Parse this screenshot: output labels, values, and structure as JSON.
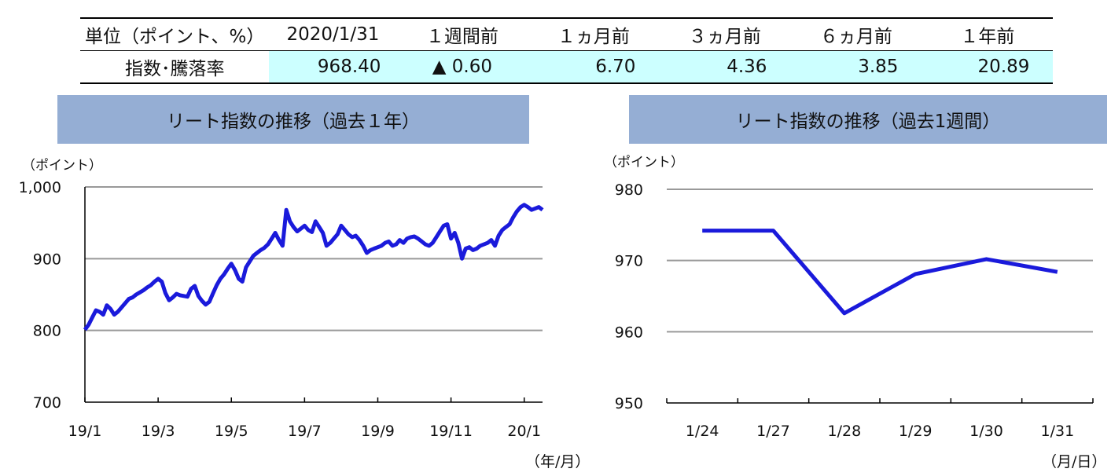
{
  "summary": {
    "unit_label": "単位（ポイント、%）",
    "row_label": "指数･騰落率",
    "columns": [
      {
        "header": "2020/1/31",
        "value": "968.40"
      },
      {
        "header": "１週間前",
        "value": "▲ 0.60"
      },
      {
        "header": "１ヵ月前",
        "value": "6.70"
      },
      {
        "header": "３ヵ月前",
        "value": "4.36"
      },
      {
        "header": "６ヵ月前",
        "value": "3.85"
      },
      {
        "header": "１年前",
        "value": "20.89"
      }
    ]
  },
  "colors": {
    "line": "#1a1adb",
    "header_bg": "#95aed4",
    "value_bg": "#ccffff",
    "grid": "#999999"
  },
  "chart_data": [
    {
      "type": "line",
      "title": "リート指数の推移（過去１年）",
      "ylabel": "（ポイント）",
      "xlabel": "（年/月）",
      "ylim": [
        700,
        1000
      ],
      "yticks": [
        700,
        800,
        900,
        1000
      ],
      "ytick_labels": [
        "700",
        "800",
        "900",
        "1,000"
      ],
      "xlim": [
        0,
        12.5
      ],
      "xticks": [
        0,
        2,
        4,
        6,
        8,
        10,
        12
      ],
      "xtick_labels": [
        "19/1",
        "19/3",
        "19/5",
        "19/7",
        "19/9",
        "19/11",
        "20/1"
      ],
      "grid": true,
      "series": [
        {
          "x": [
            0,
            0.1,
            0.2,
            0.3,
            0.4,
            0.5,
            0.6,
            0.7,
            0.8,
            0.9,
            1.0,
            1.1,
            1.2,
            1.3,
            1.4,
            1.5,
            1.6,
            1.7,
            1.8,
            1.9,
            2.0,
            2.1,
            2.2,
            2.3,
            2.4,
            2.5,
            2.6,
            2.7,
            2.8,
            2.9,
            3.0,
            3.1,
            3.2,
            3.3,
            3.4,
            3.5,
            3.6,
            3.7,
            3.8,
            3.9,
            4.0,
            4.1,
            4.2,
            4.3,
            4.4,
            4.5,
            4.6,
            4.7,
            4.8,
            4.9,
            5.0,
            5.1,
            5.2,
            5.3,
            5.4,
            5.5,
            5.6,
            5.7,
            5.8,
            5.9,
            6.0,
            6.1,
            6.2,
            6.3,
            6.4,
            6.5,
            6.6,
            6.7,
            6.8,
            6.9,
            7.0,
            7.1,
            7.2,
            7.3,
            7.4,
            7.5,
            7.6,
            7.7,
            7.8,
            7.9,
            8.0,
            8.1,
            8.2,
            8.3,
            8.4,
            8.5,
            8.6,
            8.7,
            8.8,
            8.9,
            9.0,
            9.1,
            9.2,
            9.3,
            9.4,
            9.5,
            9.6,
            9.7,
            9.8,
            9.9,
            10.0,
            10.1,
            10.2,
            10.3,
            10.4,
            10.5,
            10.6,
            10.7,
            10.8,
            10.9,
            11.0,
            11.1,
            11.2,
            11.3,
            11.4,
            11.5,
            11.6,
            11.7,
            11.8,
            11.9,
            12.0,
            12.1,
            12.2,
            12.3,
            12.4,
            12.5
          ],
          "y": [
            801,
            808,
            818,
            828,
            826,
            822,
            835,
            830,
            822,
            826,
            832,
            838,
            844,
            846,
            850,
            853,
            856,
            860,
            863,
            868,
            872,
            868,
            852,
            842,
            846,
            851,
            849,
            848,
            847,
            858,
            862,
            848,
            841,
            836,
            840,
            852,
            863,
            872,
            878,
            886,
            893,
            884,
            872,
            868,
            888,
            896,
            904,
            908,
            912,
            915,
            920,
            928,
            936,
            926,
            918,
            968,
            952,
            944,
            938,
            942,
            946,
            940,
            937,
            952,
            944,
            936,
            918,
            922,
            928,
            934,
            946,
            940,
            934,
            930,
            932,
            926,
            918,
            908,
            912,
            914,
            916,
            918,
            922,
            924,
            918,
            920,
            926,
            922,
            928,
            930,
            931,
            928,
            924,
            920,
            918,
            922,
            930,
            938,
            946,
            948,
            928,
            936,
            922,
            900,
            914,
            916,
            912,
            914,
            918,
            920,
            922,
            926,
            918,
            932,
            940,
            944,
            948,
            958,
            966,
            972,
            975,
            972,
            968,
            970,
            972,
            968
          ]
        }
      ]
    },
    {
      "type": "line",
      "title": "リート指数の推移（過去1週間）",
      "ylabel": "（ポイント）",
      "xlabel": "（月/日）",
      "ylim": [
        950,
        980
      ],
      "yticks": [
        950,
        960,
        970,
        980
      ],
      "ytick_labels": [
        "950",
        "960",
        "970",
        "980"
      ],
      "categories": [
        "1/24",
        "1/27",
        "1/28",
        "1/29",
        "1/30",
        "1/31"
      ],
      "grid": true,
      "series": [
        {
          "values": [
            974.2,
            974.2,
            962.6,
            968.1,
            970.2,
            968.4
          ]
        }
      ]
    }
  ]
}
